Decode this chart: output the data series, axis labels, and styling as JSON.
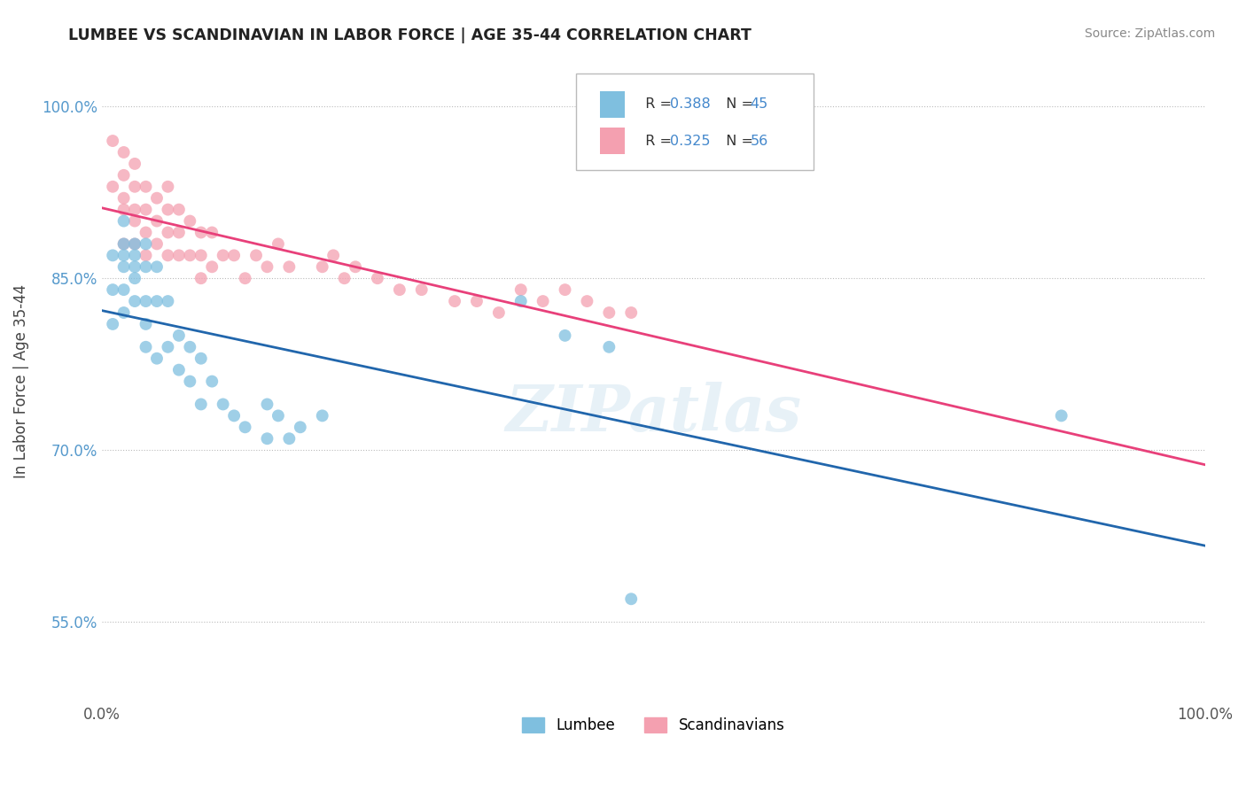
{
  "title": "LUMBEE VS SCANDINAVIAN IN LABOR FORCE | AGE 35-44 CORRELATION CHART",
  "source": "Source: ZipAtlas.com",
  "ylabel": "In Labor Force | Age 35-44",
  "xlim": [
    0.0,
    1.0
  ],
  "ylim": [
    0.48,
    1.04
  ],
  "ytick_labels": [
    "55.0%",
    "70.0%",
    "85.0%",
    "100.0%"
  ],
  "ytick_positions": [
    0.55,
    0.7,
    0.85,
    1.0
  ],
  "lumbee_color": "#7fbfdf",
  "scand_color": "#f4a0b0",
  "lumbee_line_color": "#2166ac",
  "scand_line_color": "#e8407a",
  "background_color": "#ffffff",
  "lumbee_x": [
    0.01,
    0.01,
    0.01,
    0.02,
    0.02,
    0.02,
    0.02,
    0.02,
    0.02,
    0.03,
    0.03,
    0.03,
    0.03,
    0.03,
    0.04,
    0.04,
    0.04,
    0.04,
    0.04,
    0.05,
    0.05,
    0.05,
    0.06,
    0.06,
    0.07,
    0.07,
    0.08,
    0.08,
    0.09,
    0.09,
    0.1,
    0.11,
    0.12,
    0.13,
    0.15,
    0.15,
    0.16,
    0.17,
    0.18,
    0.2,
    0.38,
    0.42,
    0.46,
    0.48,
    0.87
  ],
  "lumbee_y": [
    0.87,
    0.84,
    0.81,
    0.9,
    0.88,
    0.87,
    0.86,
    0.84,
    0.82,
    0.88,
    0.87,
    0.86,
    0.85,
    0.83,
    0.88,
    0.86,
    0.83,
    0.81,
    0.79,
    0.86,
    0.83,
    0.78,
    0.83,
    0.79,
    0.8,
    0.77,
    0.79,
    0.76,
    0.78,
    0.74,
    0.76,
    0.74,
    0.73,
    0.72,
    0.74,
    0.71,
    0.73,
    0.71,
    0.72,
    0.73,
    0.83,
    0.8,
    0.79,
    0.57,
    0.73
  ],
  "scand_x": [
    0.01,
    0.01,
    0.02,
    0.02,
    0.02,
    0.02,
    0.02,
    0.03,
    0.03,
    0.03,
    0.03,
    0.03,
    0.04,
    0.04,
    0.04,
    0.04,
    0.05,
    0.05,
    0.05,
    0.06,
    0.06,
    0.06,
    0.06,
    0.07,
    0.07,
    0.07,
    0.08,
    0.08,
    0.09,
    0.09,
    0.09,
    0.1,
    0.1,
    0.11,
    0.12,
    0.13,
    0.14,
    0.15,
    0.16,
    0.17,
    0.2,
    0.21,
    0.22,
    0.23,
    0.25,
    0.27,
    0.29,
    0.32,
    0.34,
    0.36,
    0.38,
    0.4,
    0.42,
    0.44,
    0.46,
    0.48
  ],
  "scand_y": [
    0.97,
    0.93,
    0.96,
    0.94,
    0.92,
    0.91,
    0.88,
    0.95,
    0.93,
    0.91,
    0.9,
    0.88,
    0.93,
    0.91,
    0.89,
    0.87,
    0.92,
    0.9,
    0.88,
    0.93,
    0.91,
    0.89,
    0.87,
    0.91,
    0.89,
    0.87,
    0.9,
    0.87,
    0.89,
    0.87,
    0.85,
    0.89,
    0.86,
    0.87,
    0.87,
    0.85,
    0.87,
    0.86,
    0.88,
    0.86,
    0.86,
    0.87,
    0.85,
    0.86,
    0.85,
    0.84,
    0.84,
    0.83,
    0.83,
    0.82,
    0.84,
    0.83,
    0.84,
    0.83,
    0.82,
    0.82
  ]
}
